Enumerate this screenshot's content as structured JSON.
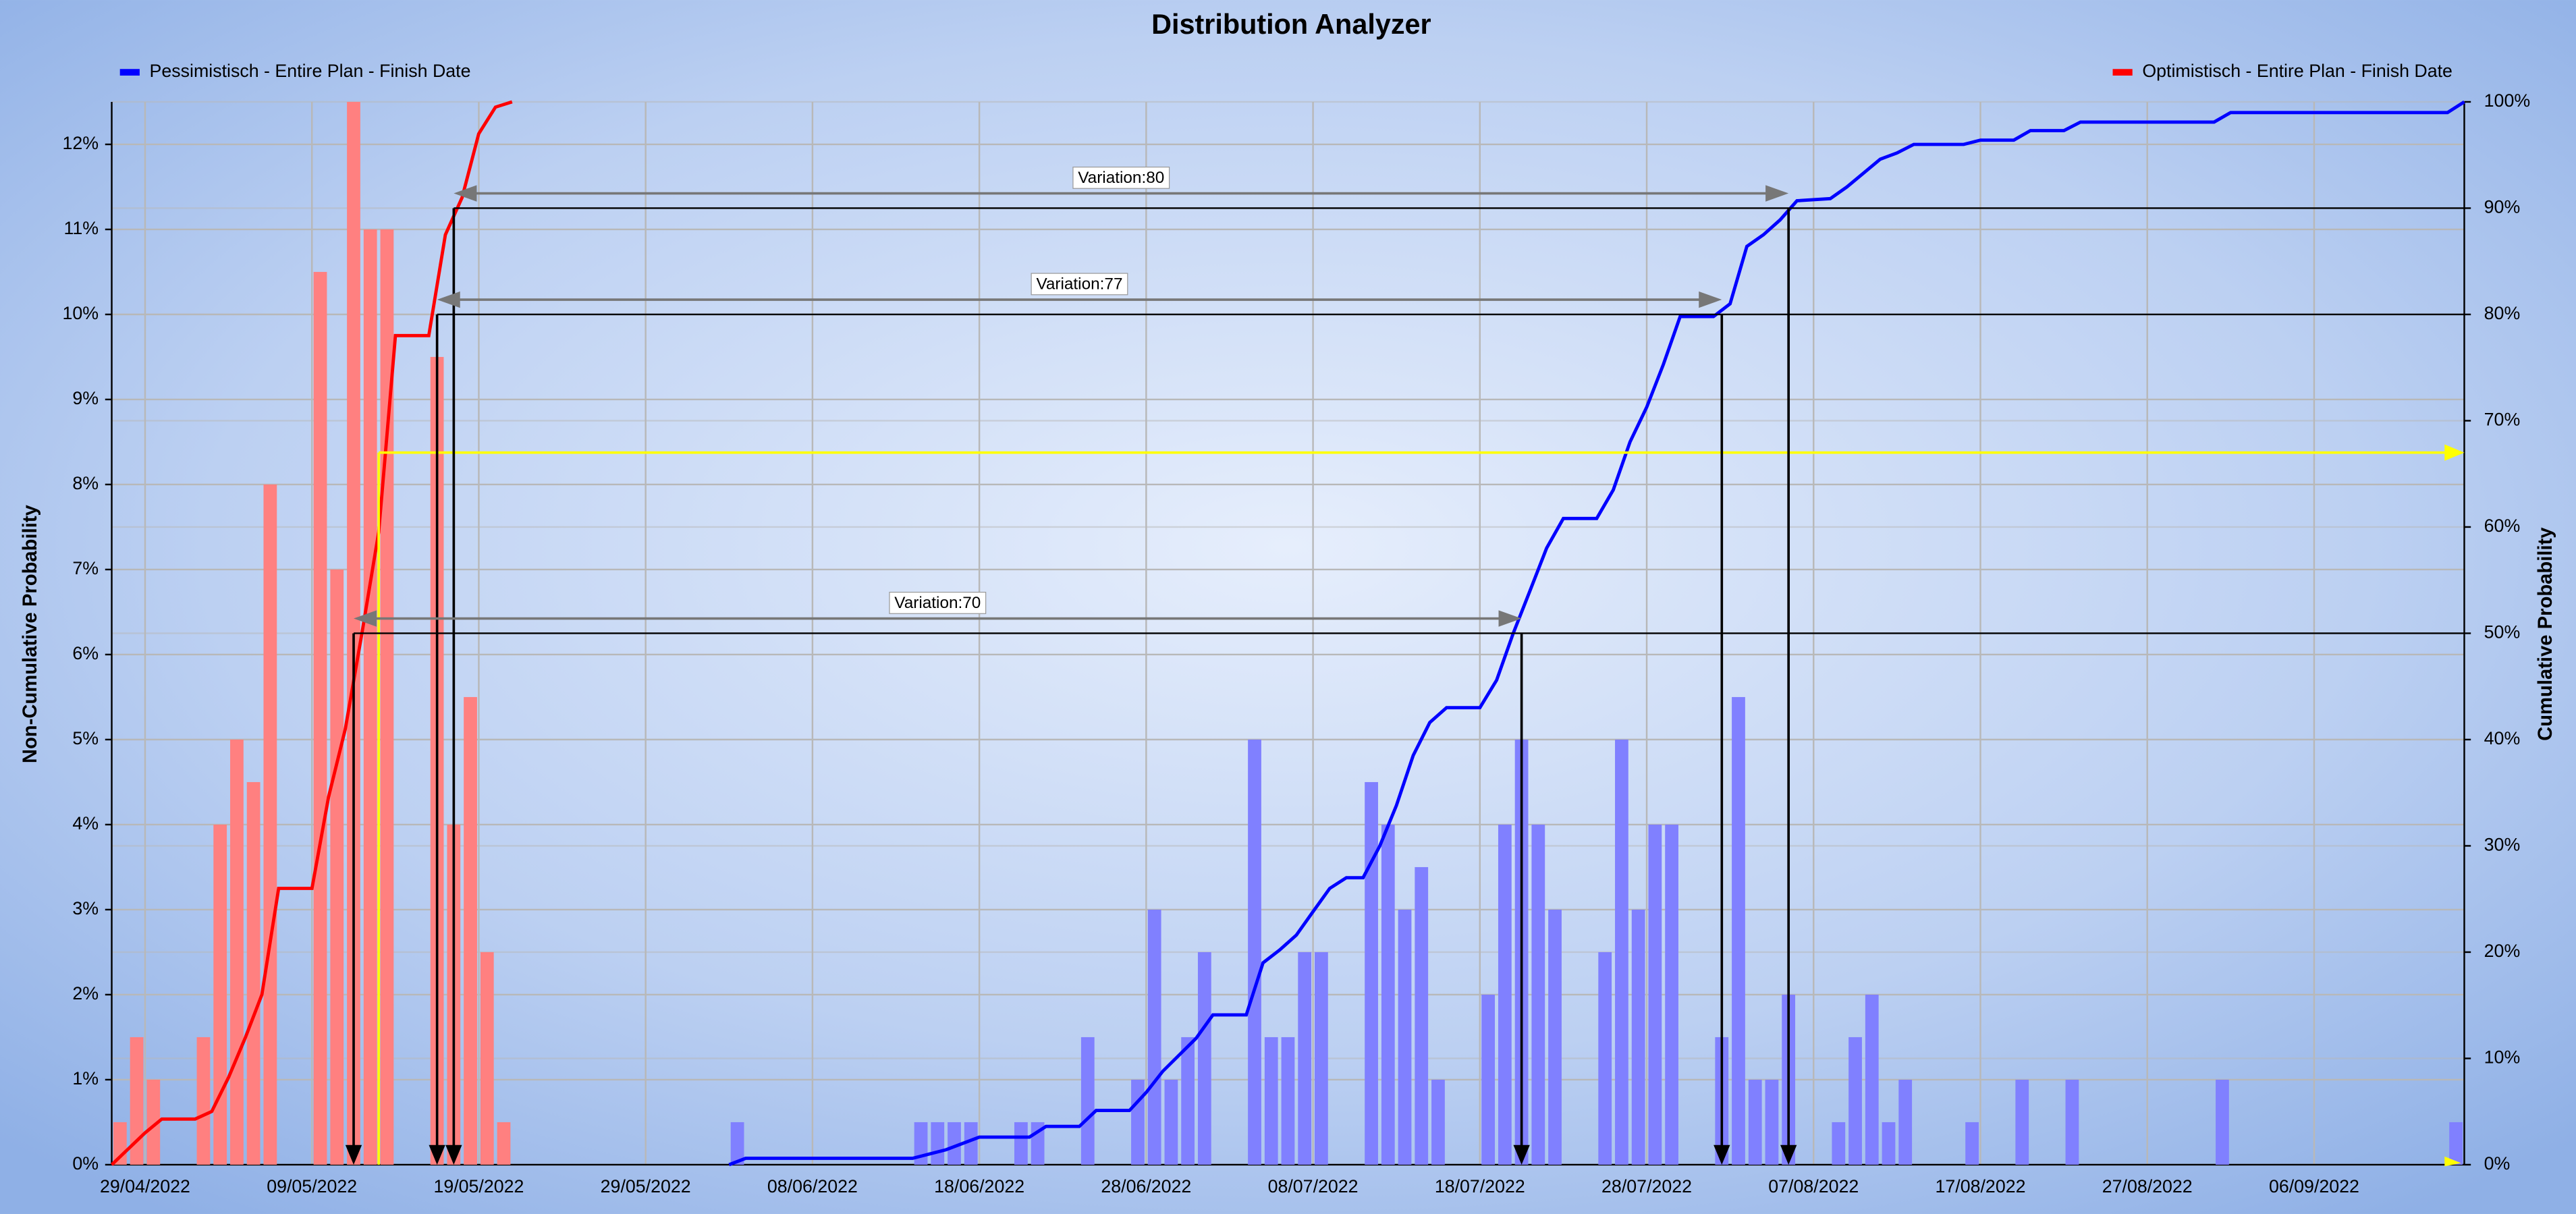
{
  "chart_data": {
    "type": "distribution",
    "title": "Distribution Analyzer",
    "y_label": "Non-Cumulative Probability",
    "y2_label": "Cumulative Probability",
    "xlim": [
      "27/04/2022",
      "15/09/2022"
    ],
    "xticks": [
      "29/04/2022",
      "09/05/2022",
      "19/05/2022",
      "29/05/2022",
      "08/06/2022",
      "18/06/2022",
      "28/06/2022",
      "08/07/2022",
      "18/07/2022",
      "28/07/2022",
      "07/08/2022",
      "17/08/2022",
      "27/08/2022",
      "06/09/2022"
    ],
    "ylim": [
      0,
      12.5
    ],
    "yticks": [
      {
        "value": 0,
        "label": "0%"
      },
      {
        "value": 1,
        "label": "1%"
      },
      {
        "value": 2,
        "label": "2%"
      },
      {
        "value": 3,
        "label": "3%"
      },
      {
        "value": 4,
        "label": "4%"
      },
      {
        "value": 5,
        "label": "5%"
      },
      {
        "value": 6,
        "label": "6%"
      },
      {
        "value": 7,
        "label": "7%"
      },
      {
        "value": 8,
        "label": "8%"
      },
      {
        "value": 9,
        "label": "9%"
      },
      {
        "value": 10,
        "label": "10%"
      },
      {
        "value": 11,
        "label": "11%"
      },
      {
        "value": 12,
        "label": "12%"
      }
    ],
    "y2lim": [
      0,
      100
    ],
    "y2ticks": [
      {
        "value": 0,
        "label": "0%"
      },
      {
        "value": 10,
        "label": "10%"
      },
      {
        "value": 20,
        "label": "20%"
      },
      {
        "value": 30,
        "label": "30%"
      },
      {
        "value": 40,
        "label": "40%"
      },
      {
        "value": 50,
        "label": "50%"
      },
      {
        "value": 60,
        "label": "60%"
      },
      {
        "value": 70,
        "label": "70%"
      },
      {
        "value": 80,
        "label": "80%"
      },
      {
        "value": 90,
        "label": "90%"
      },
      {
        "value": 100,
        "label": "100%"
      }
    ],
    "grid": true,
    "series": [
      {
        "name": "Pessimistisch - Entire Plan - Finish Date",
        "color": "#0000ff",
        "bar_color": "#8080ff",
        "legend": "left",
        "bars": {
          "x": [
            "03/06/2022",
            "14/06/2022",
            "15/06/2022",
            "16/06/2022",
            "17/06/2022",
            "20/06/2022",
            "21/06/2022",
            "24/06/2022",
            "27/06/2022",
            "28/06/2022",
            "29/06/2022",
            "30/06/2022",
            "01/07/2022",
            "04/07/2022",
            "05/07/2022",
            "06/07/2022",
            "07/07/2022",
            "08/07/2022",
            "11/07/2022",
            "12/07/2022",
            "13/07/2022",
            "14/07/2022",
            "15/07/2022",
            "18/07/2022",
            "19/07/2022",
            "20/07/2022",
            "21/07/2022",
            "22/07/2022",
            "25/07/2022",
            "26/07/2022",
            "27/07/2022",
            "28/07/2022",
            "29/07/2022",
            "01/08/2022",
            "02/08/2022",
            "03/08/2022",
            "04/08/2022",
            "05/08/2022",
            "08/08/2022",
            "09/08/2022",
            "10/08/2022",
            "11/08/2022",
            "12/08/2022",
            "16/08/2022",
            "19/08/2022",
            "22/08/2022",
            "31/08/2022",
            "14/09/2022"
          ],
          "values": [
            0.5,
            0.5,
            0.5,
            0.5,
            0.5,
            0.5,
            0.5,
            1.5,
            1,
            3,
            1,
            1.5,
            2.5,
            5,
            1.5,
            1.5,
            2.5,
            2.5,
            4.5,
            4,
            3,
            3.5,
            1,
            2,
            4,
            5,
            4,
            3,
            2.5,
            5,
            3,
            4,
            4,
            1.5,
            5.5,
            1,
            1,
            2,
            0.5,
            1.5,
            2,
            0.5,
            1,
            0.5,
            1,
            1,
            1,
            0.5
          ]
        },
        "cumulative": {
          "x": [
            "03/06/2022",
            "04/06/2022",
            "14/06/2022",
            "16/06/2022",
            "18/06/2022",
            "21/06/2022",
            "22/06/2022",
            "24/06/2022",
            "25/06/2022",
            "27/06/2022",
            "28/06/2022",
            "29/06/2022",
            "01/07/2022",
            "02/07/2022",
            "04/07/2022",
            "05/07/2022",
            "06/07/2022",
            "07/07/2022",
            "08/07/2022",
            "09/07/2022",
            "10/07/2022",
            "11/07/2022",
            "12/07/2022",
            "13/07/2022",
            "14/07/2022",
            "15/07/2022",
            "16/07/2022",
            "18/07/2022",
            "19/07/2022",
            "20/07/2022",
            "21/07/2022",
            "22/07/2022",
            "23/07/2022",
            "25/07/2022",
            "26/07/2022",
            "27/07/2022",
            "28/07/2022",
            "29/07/2022",
            "30/07/2022",
            "01/08/2022",
            "02/08/2022",
            "03/08/2022",
            "04/08/2022",
            "05/08/2022",
            "06/08/2022",
            "08/08/2022",
            "09/08/2022",
            "11/08/2022",
            "12/08/2022",
            "13/08/2022",
            "16/08/2022",
            "17/08/2022",
            "19/08/2022",
            "20/08/2022",
            "22/08/2022",
            "23/08/2022",
            "31/08/2022",
            "01/09/2022",
            "14/09/2022",
            "15/09/2022"
          ],
          "values": [
            0,
            0.6,
            0.6,
            1.4,
            2.6,
            2.6,
            3.6,
            3.6,
            5.1,
            5.1,
            6.8,
            8.8,
            11.9,
            14.1,
            14.1,
            19,
            20.2,
            21.6,
            23.8,
            26,
            27,
            27,
            30,
            33.8,
            38.5,
            41.6,
            43,
            43,
            45.6,
            50,
            54,
            58,
            60.8,
            60.8,
            63.5,
            68,
            71.3,
            75.3,
            79.8,
            79.8,
            81,
            86.4,
            87.5,
            88.9,
            90.7,
            90.9,
            92,
            94.6,
            95.2,
            96,
            96,
            96.4,
            96.4,
            97.3,
            97.3,
            98.1,
            98.1,
            99,
            99,
            100
          ]
        }
      },
      {
        "name": "Optimistisch - Entire Plan - Finish Date",
        "color": "#ff0000",
        "bar_color": "#ff8080",
        "legend": "right",
        "bars": {
          "x": [
            "27/04/2022",
            "28/04/2022",
            "29/04/2022",
            "02/05/2022",
            "03/05/2022",
            "04/05/2022",
            "05/05/2022",
            "06/05/2022",
            "09/05/2022",
            "10/05/2022",
            "11/05/2022",
            "12/05/2022",
            "13/05/2022",
            "16/05/2022",
            "17/05/2022",
            "18/05/2022",
            "19/05/2022",
            "20/05/2022"
          ],
          "values": [
            0.5,
            1.5,
            1,
            1.5,
            4,
            5,
            4.5,
            8,
            10.5,
            7,
            12.5,
            11,
            11,
            9.5,
            4,
            5.5,
            2.5,
            0.5
          ]
        },
        "cumulative": {
          "x": [
            "27/04/2022",
            "29/04/2022",
            "30/04/2022",
            "02/05/2022",
            "03/05/2022",
            "04/05/2022",
            "05/05/2022",
            "06/05/2022",
            "07/05/2022",
            "09/05/2022",
            "10/05/2022",
            "11/05/2022",
            "12/05/2022",
            "13/05/2022",
            "14/05/2022",
            "16/05/2022",
            "17/05/2022",
            "18/05/2022",
            "19/05/2022",
            "20/05/2022",
            "21/05/2022"
          ],
          "values": [
            0,
            3,
            4.3,
            4.3,
            5,
            8.2,
            11.9,
            16,
            26,
            26,
            34.6,
            41,
            50,
            59.5,
            78,
            78,
            87.5,
            91,
            97,
            99.5,
            100
          ]
        }
      }
    ],
    "variations": [
      {
        "label": "Variation:80",
        "level": 90,
        "from": "17/05/2022",
        "to": "05/08/2022"
      },
      {
        "label": "Variation:77",
        "level": 80,
        "from": "16/05/2022",
        "to": "01/08/2022"
      },
      {
        "label": "Variation:70",
        "level": 50,
        "from": "11/05/2022",
        "to": "20/07/2022"
      }
    ],
    "cursor": {
      "x": "13/05/2022",
      "level": 67,
      "color": "#ffff00"
    }
  }
}
